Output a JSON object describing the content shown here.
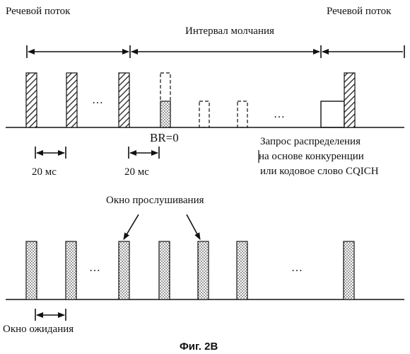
{
  "top": {
    "speech_left": "Речевой поток",
    "speech_right": "Речевой поток",
    "silence": "Интервал молчания",
    "br": "BR=0",
    "ellipsis": "…",
    "interval_left": "20 мс",
    "interval_right": "20 мс",
    "request_lines": [
      "Запрос распределения",
      "на основе конкуренции",
      "или кодовое слово CQICH"
    ]
  },
  "bottom": {
    "listen_window": "Окно прослушивания",
    "wait_window": "Окно ожидания",
    "ellipsis": "…"
  },
  "caption": "Фиг. 2B"
}
